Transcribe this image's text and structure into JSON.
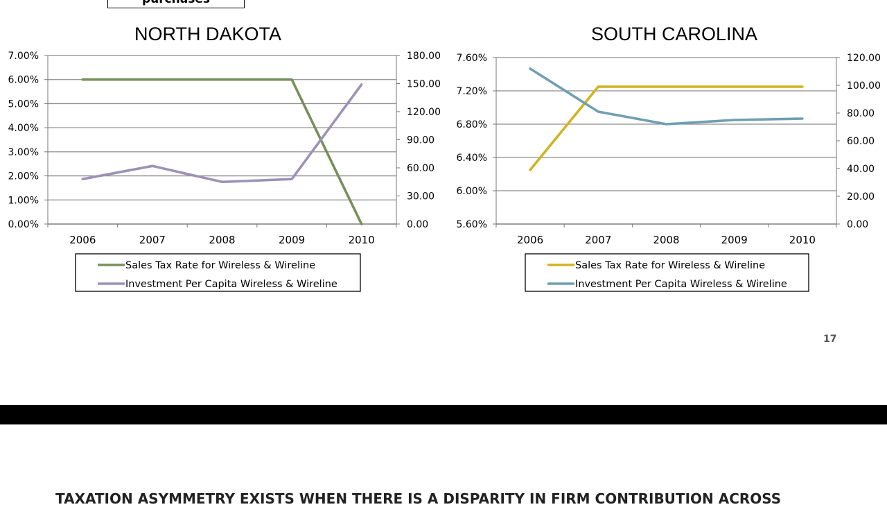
{
  "top_box_text": "purchases",
  "page_number": "17",
  "bottom_heading": "TAXATION ASYMMETRY EXISTS WHEN THERE IS A DISPARITY IN FIRM CONTRIBUTION ACROSS",
  "chart_data": [
    {
      "type": "line",
      "title": "NORTH DAKOTA",
      "categories": [
        "2006",
        "2007",
        "2008",
        "2009",
        "2010"
      ],
      "left_axis": {
        "range": [
          0,
          0.07
        ],
        "ticks": [
          "0.00%",
          "1.00%",
          "2.00%",
          "3.00%",
          "4.00%",
          "5.00%",
          "6.00%",
          "7.00%"
        ]
      },
      "right_axis": {
        "range": [
          0,
          180
        ],
        "ticks": [
          "0.00",
          "30.00",
          "60.00",
          "90.00",
          "120.00",
          "150.00",
          "180.00"
        ]
      },
      "grid": true,
      "legend_position": "bottom",
      "series": [
        {
          "name": "Sales Tax Rate for Wireless & Wireline",
          "axis": "left",
          "color": "#76905a",
          "values": [
            0.06,
            0.06,
            0.06,
            0.06,
            0.0
          ]
        },
        {
          "name": "Investment Per Capita Wireless & Wireline",
          "axis": "right",
          "color": "#9d92b5",
          "values": [
            48,
            62,
            45,
            48,
            149
          ]
        }
      ]
    },
    {
      "type": "line",
      "title": "SOUTH CAROLINA",
      "categories": [
        "2006",
        "2007",
        "2008",
        "2009",
        "2010"
      ],
      "left_axis": {
        "range": [
          0.056,
          0.076
        ],
        "ticks": [
          "5.60%",
          "6.00%",
          "6.40%",
          "6.80%",
          "7.20%",
          "7.60%"
        ]
      },
      "right_axis": {
        "range": [
          0,
          120
        ],
        "ticks": [
          "0.00",
          "20.00",
          "40.00",
          "60.00",
          "80.00",
          "100.00",
          "120.00"
        ]
      },
      "grid": true,
      "legend_position": "bottom",
      "series": [
        {
          "name": "Sales Tax Rate for Wireless & Wireline",
          "axis": "left",
          "color": "#d2b320",
          "values": [
            0.0625,
            0.0725,
            0.0725,
            0.0725,
            0.0725
          ]
        },
        {
          "name": "Investment Per Capita Wireless & Wireline",
          "axis": "right",
          "color": "#6f9fb1",
          "values": [
            112,
            81,
            72,
            75,
            76
          ]
        }
      ]
    }
  ]
}
